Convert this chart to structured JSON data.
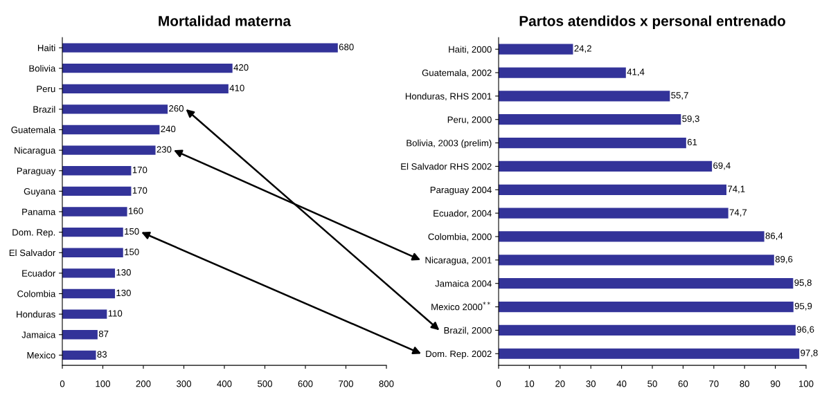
{
  "chart_data": [
    {
      "type": "bar",
      "orientation": "horizontal",
      "title": "Mortalidad materna",
      "categories": [
        "Haiti",
        "Bolivia",
        "Peru",
        "Brazil",
        "Guatemala",
        "Nicaragua",
        "Paraguay",
        "Guyana",
        "Panama",
        "Dom. Rep.",
        "El Salvador",
        "Ecuador",
        "Colombia",
        "Honduras",
        "Jamaica",
        "Mexico"
      ],
      "values": [
        680,
        420,
        410,
        260,
        240,
        230,
        170,
        170,
        160,
        150,
        150,
        130,
        130,
        110,
        87,
        83
      ],
      "color": "#333399",
      "xlim": [
        0,
        800
      ],
      "xticks": [
        0,
        100,
        200,
        300,
        400,
        500,
        600,
        700,
        800
      ],
      "data_labels": true,
      "grid": false
    },
    {
      "type": "bar",
      "orientation": "horizontal",
      "title": "Partos atendidos x personal entrenado",
      "categories": [
        "Haiti, 2000",
        "Guatemala, 2002",
        "Honduras, RHS 2001",
        "Peru, 2000",
        "Bolivia, 2003 (prelim)",
        "El Salvador RHS 2002",
        "Paraguay 2004",
        "Ecuador, 2004",
        "Colombia, 2000",
        "Nicaragua, 2001",
        "Jamaica 2004",
        "Mexico 2000$^{**}$",
        "Brazil, 2000",
        "Dom. Rep. 2002"
      ],
      "values": [
        24.2,
        41.4,
        55.7,
        59.3,
        61,
        69.4,
        74.1,
        74.7,
        86.4,
        89.6,
        95.8,
        95.9,
        96.6,
        97.8
      ],
      "value_labels": [
        "24,2",
        "41,4",
        "55,7",
        "59,3",
        "61",
        "69,4",
        "74,1",
        "74,7",
        "86,4",
        "89,6",
        "95,8",
        "95,9",
        "96,6",
        "97,8"
      ],
      "color": "#333399",
      "xlim": [
        0,
        100
      ],
      "xticks": [
        0,
        10,
        20,
        30,
        40,
        50,
        60,
        70,
        80,
        90,
        100
      ],
      "grid": false
    }
  ]
}
